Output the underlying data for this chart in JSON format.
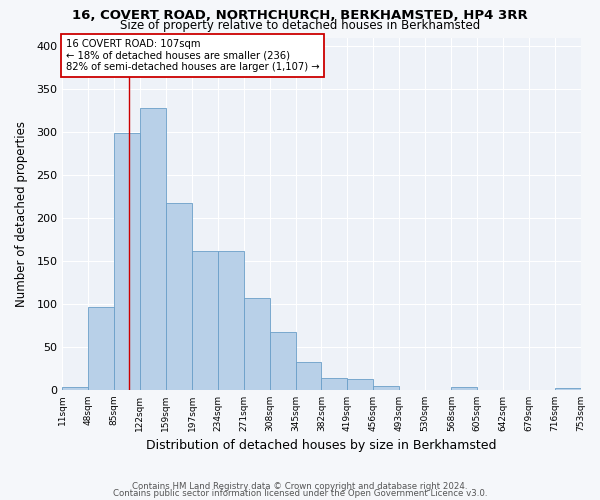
{
  "title_line1": "16, COVERT ROAD, NORTHCHURCH, BERKHAMSTED, HP4 3RR",
  "title_line2": "Size of property relative to detached houses in Berkhamsted",
  "xlabel": "Distribution of detached houses by size in Berkhamsted",
  "ylabel": "Number of detached properties",
  "bin_edges": [
    11,
    48,
    85,
    122,
    159,
    197,
    234,
    271,
    308,
    345,
    382,
    419,
    456,
    493,
    530,
    568,
    605,
    642,
    679,
    716,
    753
  ],
  "bar_heights": [
    3,
    97,
    299,
    328,
    218,
    162,
    162,
    107,
    67,
    33,
    14,
    13,
    5,
    0,
    0,
    3,
    0,
    0,
    0,
    2
  ],
  "bar_color": "#b8d0e8",
  "bar_edge_color": "#6a9fc8",
  "property_size": 107,
  "vline_color": "#cc0000",
  "annotation_text": "16 COVERT ROAD: 107sqm\n← 18% of detached houses are smaller (236)\n82% of semi-detached houses are larger (1,107) →",
  "annotation_box_color": "#ffffff",
  "annotation_box_edge_color": "#cc0000",
  "ylim": [
    0,
    410
  ],
  "yticks": [
    0,
    50,
    100,
    150,
    200,
    250,
    300,
    350,
    400
  ],
  "background_color": "#eef2f8",
  "grid_color": "#ffffff",
  "footer_line1": "Contains HM Land Registry data © Crown copyright and database right 2024.",
  "footer_line2": "Contains public sector information licensed under the Open Government Licence v3.0.",
  "tick_labels": [
    "11sqm",
    "48sqm",
    "85sqm",
    "122sqm",
    "159sqm",
    "197sqm",
    "234sqm",
    "271sqm",
    "308sqm",
    "345sqm",
    "382sqm",
    "419sqm",
    "456sqm",
    "493sqm",
    "530sqm",
    "568sqm",
    "605sqm",
    "642sqm",
    "679sqm",
    "716sqm",
    "753sqm"
  ],
  "fig_width": 6.0,
  "fig_height": 5.0,
  "dpi": 100
}
